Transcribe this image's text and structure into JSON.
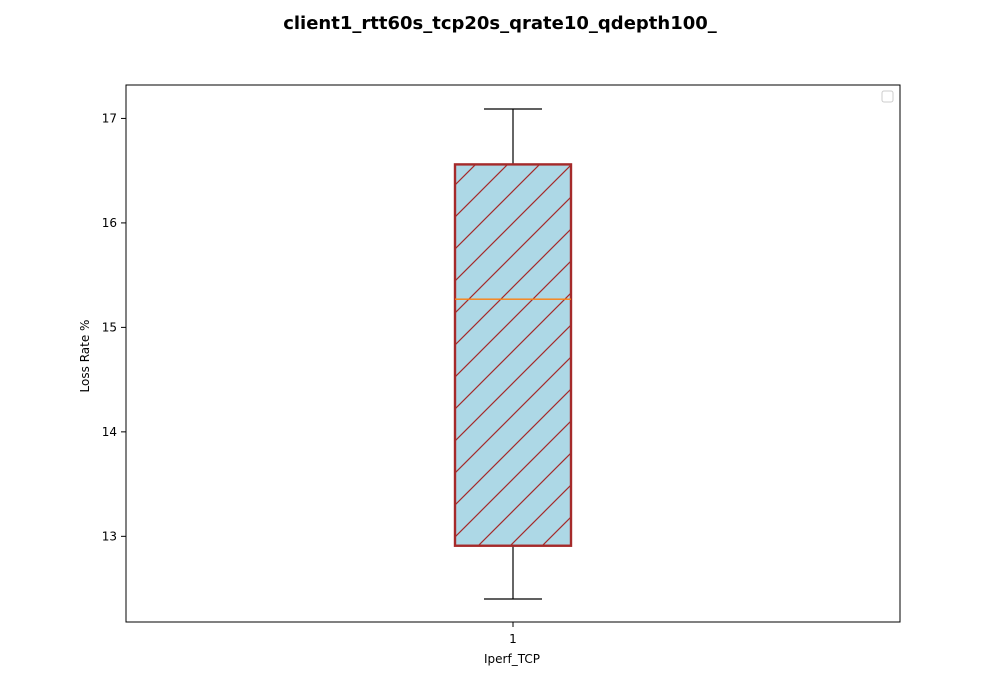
{
  "chart_data": {
    "type": "box",
    "title": "client1_rtt60s_tcp20s_qrate10_qdepth100_",
    "xlabel": "Iperf_TCP",
    "ylabel": "Loss Rate %",
    "categories": [
      "1"
    ],
    "ylim": [
      12.18,
      17.32
    ],
    "yticks": [
      13,
      14,
      15,
      16,
      17
    ],
    "legend": {
      "position": "top-right",
      "entries": []
    },
    "grid": false,
    "boxes": [
      {
        "category": "1",
        "whisker_low": 12.4,
        "q1": 12.91,
        "median": 15.27,
        "q3": 16.56,
        "whisker_high": 17.09
      }
    ],
    "colors": {
      "box_fill": "#add8e6",
      "box_edge": "#a52a2a",
      "hatch": "#a52a2a",
      "median": "#ff7f0e",
      "whisker": "#000000"
    }
  }
}
